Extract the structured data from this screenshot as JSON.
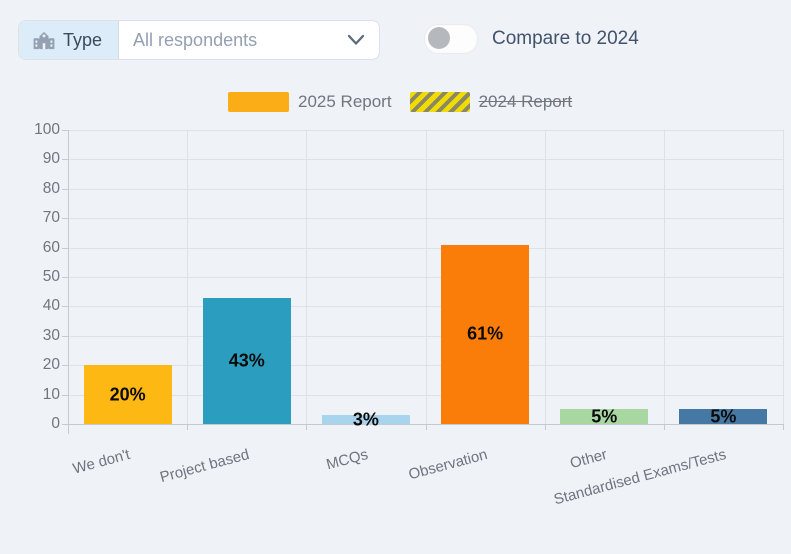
{
  "filter": {
    "label": "Type",
    "value": "All respondents"
  },
  "compare_toggle": {
    "label": "Compare to 2024",
    "state": "off"
  },
  "legend": {
    "items": [
      {
        "label": "2025 Report",
        "swatch": "solid",
        "color": "#fbad18",
        "struck": false
      },
      {
        "label": "2024 Report",
        "swatch": "hatched",
        "color": "#f1db00",
        "struck": true
      }
    ]
  },
  "chart_data": {
    "type": "bar",
    "title": "",
    "xlabel": "",
    "ylabel": "",
    "categories": [
      "We don't",
      "Project based",
      "MCQs",
      "Observation",
      "Other",
      "Standardised Exams/Tests"
    ],
    "series": [
      {
        "name": "2025 Report",
        "values": [
          20,
          43,
          3,
          61,
          5,
          5
        ]
      }
    ],
    "data_labels": [
      "20%",
      "43%",
      "3%",
      "61%",
      "5%",
      "5%"
    ],
    "bar_colors": [
      "#fdb813",
      "#2b9ebf",
      "#a9d4ee",
      "#fa7d09",
      "#a9d7a2",
      "#4579a4"
    ],
    "ylim": [
      0,
      100
    ],
    "ytick_step": 10,
    "grid": true,
    "legend_position": "top"
  }
}
